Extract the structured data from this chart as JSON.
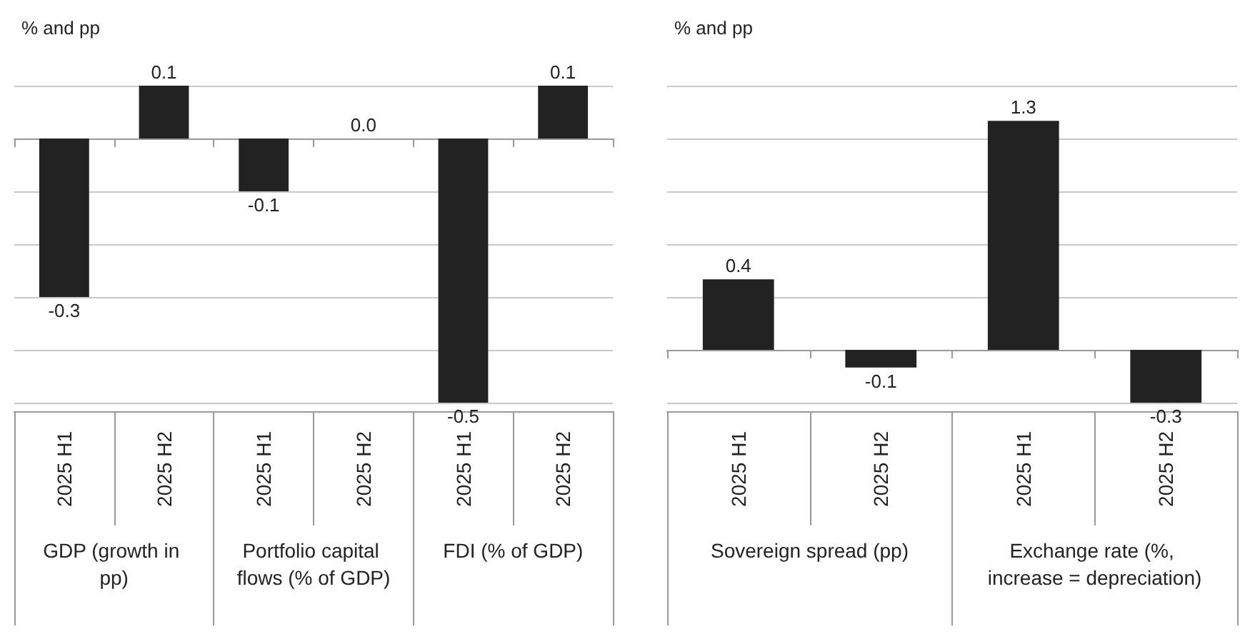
{
  "chart_data": [
    {
      "type": "bar",
      "ylabel": "% and pp",
      "categories": [
        "2025 H1",
        "2025 H2",
        "2025 H1",
        "2025 H2",
        "2025 H1",
        "2025 H2"
      ],
      "values": [
        -0.3,
        0.1,
        -0.1,
        0.0,
        -0.5,
        0.1
      ],
      "value_labels": [
        "-0.3",
        "0.1",
        "-0.1",
        "0.0",
        "-0.5",
        "0.1"
      ],
      "tick_labels": "x",
      "color": "#222222",
      "grid": "y",
      "annotations": [
        "GDP (growth in pp)",
        "Portfolio capital flows (% of GDP)",
        "FDI (% of GDP)"
      ]
    },
    {
      "type": "bar",
      "ylabel": "% and pp",
      "categories": [
        "2025 H1",
        "2025 H2",
        "2025 H1",
        "2025 H2"
      ],
      "values": [
        0.4,
        -0.1,
        1.3,
        -0.3
      ],
      "value_labels": [
        "0.4",
        "-0.1",
        "1.3",
        "-0.3"
      ],
      "tick_labels": "x",
      "color": "#222222",
      "grid": "y",
      "annotations": [
        "Sovereign spread (pp)",
        "Exchange rate (%, increase = depreciation)"
      ]
    }
  ]
}
